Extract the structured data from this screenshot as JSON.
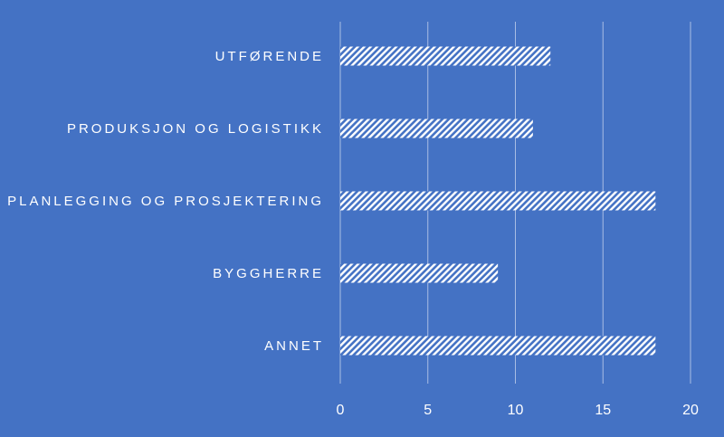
{
  "chart_data": {
    "type": "bar",
    "orientation": "horizontal",
    "categories": [
      "UTFØRENDE",
      "PRODUKSJON OG LOGISTIKK",
      "PLANLEGGING OG PROSJEKTERING",
      "BYGGHERRE",
      "ANNET"
    ],
    "values": [
      12,
      11,
      18,
      9,
      18
    ],
    "title": "",
    "xlabel": "",
    "ylabel": "",
    "xlim": [
      0,
      20
    ],
    "x_ticks": [
      0,
      5,
      10,
      15,
      20
    ],
    "grid": true,
    "legend": "none",
    "colors": {
      "background": "#4472c4",
      "bar_pattern": "#ffffff",
      "bar_base": "#4472c4",
      "gridline": "#a9bde4",
      "text": "#ffffff"
    }
  }
}
